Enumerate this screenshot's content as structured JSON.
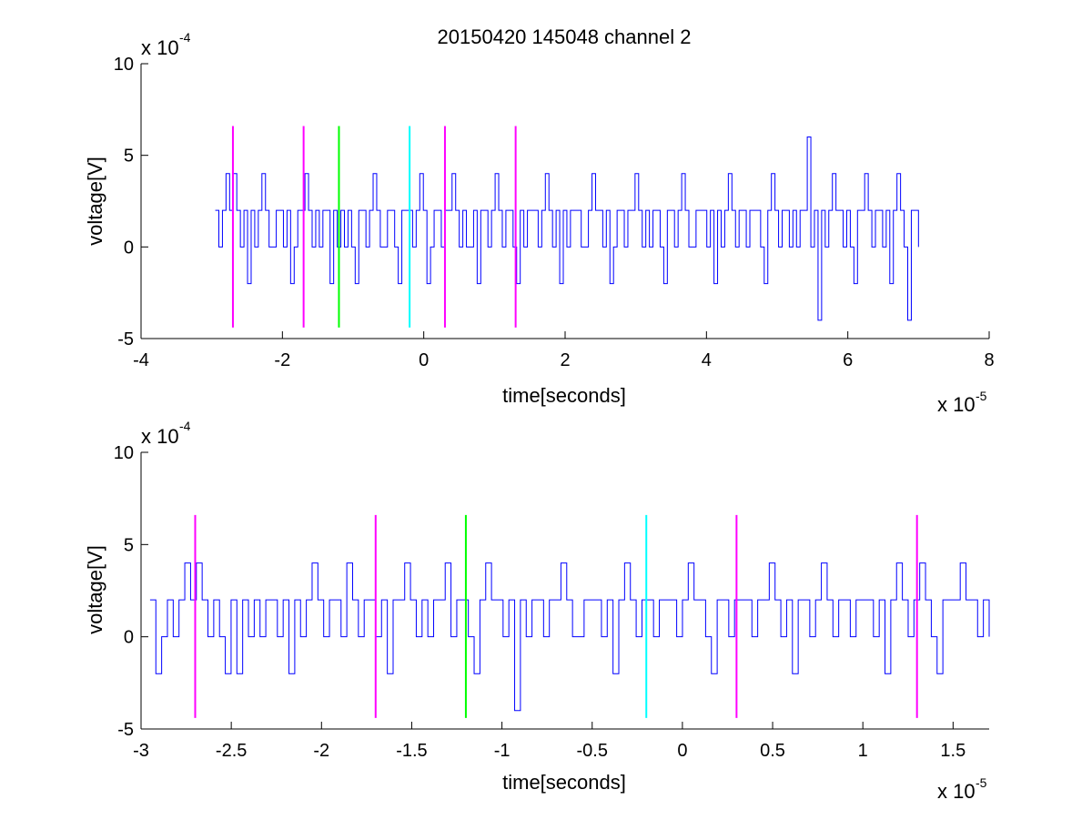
{
  "chart_data": [
    {
      "type": "line",
      "title": "20150420 145048 channel 2",
      "xlabel": "time[seconds]",
      "ylabel": "voltage[V]",
      "x_multiplier_base": "x 10",
      "x_multiplier_exp": "-5",
      "y_multiplier_base": "x 10",
      "y_multiplier_exp": "-4",
      "xlim": [
        -4,
        8
      ],
      "ylim": [
        -5,
        10
      ],
      "x_ticks": [
        -4,
        -2,
        0,
        2,
        4,
        6,
        8
      ],
      "x_tick_labels": [
        "-4",
        "-2",
        "0",
        "2",
        "4",
        "6",
        "8"
      ],
      "y_ticks": [
        -5,
        0,
        5,
        10
      ],
      "y_tick_labels": [
        "-5",
        "0",
        "5",
        "10"
      ],
      "signal": {
        "color": "#0000ff",
        "x_start": -2.95,
        "x_end": 7.0,
        "samples": [
          2,
          0,
          2,
          4,
          2,
          4,
          2,
          0,
          2,
          -2,
          2,
          0,
          2,
          4,
          2,
          0,
          0,
          2,
          2,
          0,
          2,
          -2,
          0,
          2,
          2,
          4,
          2,
          0,
          2,
          0,
          2,
          2,
          -2,
          2,
          0,
          2,
          0,
          2,
          0,
          -2,
          2,
          2,
          0,
          2,
          4,
          2,
          0,
          0,
          2,
          2,
          0,
          -2,
          2,
          2,
          2,
          0,
          2,
          4,
          2,
          -2,
          0,
          2,
          2,
          0,
          2,
          2,
          4,
          2,
          0,
          2,
          0,
          0,
          2,
          -2,
          2,
          2,
          0,
          2,
          4,
          2,
          0,
          2,
          2,
          0,
          -2,
          2,
          0,
          2,
          2,
          2,
          0,
          2,
          4,
          2,
          0,
          2,
          -2,
          2,
          0,
          2,
          2,
          2,
          0,
          0,
          2,
          4,
          2,
          2,
          0,
          2,
          -2,
          0,
          2,
          2,
          0,
          2,
          2,
          4,
          2,
          0,
          2,
          0,
          2,
          2,
          0,
          -2,
          2,
          2,
          0,
          2,
          4,
          2,
          0,
          0,
          2,
          2,
          2,
          0,
          2,
          -2,
          2,
          0,
          2,
          4,
          2,
          0,
          2,
          2,
          0,
          2,
          2,
          2,
          0,
          -2,
          2,
          4,
          2,
          0,
          2,
          2,
          0,
          2,
          0,
          2,
          2,
          6,
          0,
          2,
          -4,
          2,
          0,
          2,
          4,
          2,
          2,
          0,
          2,
          0,
          -2,
          2,
          2,
          4,
          2,
          0,
          2,
          2,
          0,
          2,
          -2,
          2,
          4,
          2,
          0,
          -4,
          2,
          2,
          0
        ]
      },
      "markers": [
        {
          "x": -2.7,
          "y_range": [
            -4.4,
            6.6
          ],
          "color": "#ff00ff"
        },
        {
          "x": -1.7,
          "y_range": [
            -4.4,
            6.6
          ],
          "color": "#ff00ff"
        },
        {
          "x": -1.2,
          "y_range": [
            -4.4,
            6.6
          ],
          "color": "#00ff00"
        },
        {
          "x": -0.2,
          "y_range": [
            -4.4,
            6.6
          ],
          "color": "#00ffff"
        },
        {
          "x": 0.3,
          "y_range": [
            -4.4,
            6.6
          ],
          "color": "#ff00ff"
        },
        {
          "x": 1.3,
          "y_range": [
            -4.4,
            6.6
          ],
          "color": "#ff00ff"
        }
      ]
    },
    {
      "type": "line",
      "title": "",
      "xlabel": "time[seconds]",
      "ylabel": "voltage[V]",
      "x_multiplier_base": "x 10",
      "x_multiplier_exp": "-5",
      "y_multiplier_base": "x 10",
      "y_multiplier_exp": "-4",
      "xlim": [
        -3.0,
        1.7
      ],
      "ylim": [
        -5,
        10
      ],
      "x_ticks": [
        -3,
        -2.5,
        -2,
        -1.5,
        -1,
        -0.5,
        0,
        0.5,
        1,
        1.5
      ],
      "x_tick_labels": [
        "-3",
        "-2.5",
        "-2",
        "-1.5",
        "-1",
        "-0.5",
        "0",
        "0.5",
        "1",
        "1.5"
      ],
      "y_ticks": [
        -5,
        0,
        5,
        10
      ],
      "y_tick_labels": [
        "-5",
        "0",
        "5",
        "10"
      ],
      "signal": {
        "color": "#0000ff",
        "x_start": -2.95,
        "x_end": 1.7,
        "samples": [
          2,
          -2,
          0,
          2,
          0,
          2,
          4,
          2,
          4,
          2,
          0,
          2,
          0,
          -2,
          2,
          -2,
          2,
          0,
          2,
          0,
          2,
          2,
          0,
          2,
          -2,
          2,
          0,
          2,
          4,
          2,
          0,
          2,
          2,
          0,
          4,
          2,
          0,
          2,
          2,
          0,
          2,
          -2,
          2,
          2,
          4,
          2,
          0,
          2,
          0,
          2,
          2,
          4,
          0,
          2,
          2,
          0,
          -2,
          2,
          4,
          2,
          2,
          0,
          2,
          -4,
          2,
          0,
          2,
          2,
          0,
          2,
          2,
          4,
          2,
          0,
          0,
          2,
          2,
          2,
          0,
          2,
          -2,
          2,
          4,
          2,
          0,
          2,
          2,
          0,
          2,
          2,
          2,
          0,
          2,
          4,
          2,
          2,
          0,
          -2,
          2,
          2,
          0,
          2,
          2,
          2,
          0,
          2,
          2,
          4,
          2,
          0,
          2,
          -2,
          2,
          2,
          0,
          2,
          4,
          2,
          0,
          2,
          2,
          0,
          2,
          2,
          2,
          0,
          2,
          -2,
          2,
          4,
          2,
          0,
          2,
          4,
          2,
          0,
          -2,
          2,
          2,
          2,
          4,
          2,
          2,
          0,
          2,
          0
        ]
      },
      "markers": [
        {
          "x": -2.7,
          "y_range": [
            -4.4,
            6.6
          ],
          "color": "#ff00ff"
        },
        {
          "x": -1.7,
          "y_range": [
            -4.4,
            6.6
          ],
          "color": "#ff00ff"
        },
        {
          "x": -1.2,
          "y_range": [
            -4.4,
            6.6
          ],
          "color": "#00ff00"
        },
        {
          "x": -0.2,
          "y_range": [
            -4.4,
            6.6
          ],
          "color": "#00ffff"
        },
        {
          "x": 0.3,
          "y_range": [
            -4.4,
            6.6
          ],
          "color": "#ff00ff"
        },
        {
          "x": 1.3,
          "y_range": [
            -4.4,
            6.6
          ],
          "color": "#ff00ff"
        }
      ]
    }
  ]
}
